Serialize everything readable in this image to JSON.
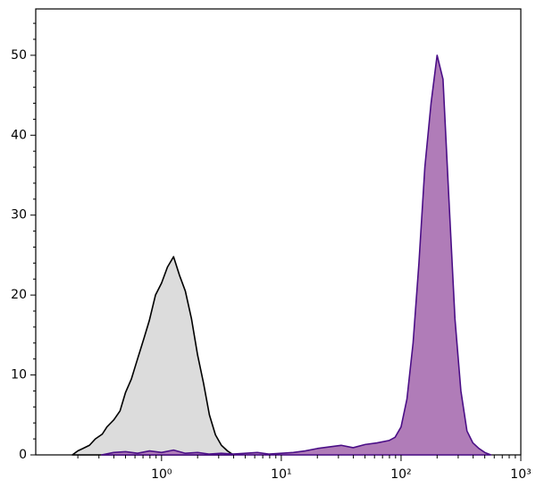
{
  "chart_data": {
    "type": "histogram-line",
    "xscale": "log",
    "xlim": [
      0.089,
      1000
    ],
    "ylim": [
      0,
      55.8
    ],
    "xticks": [
      {
        "value": 1,
        "label": "10⁰"
      },
      {
        "value": 10,
        "label": "10¹"
      },
      {
        "value": 100,
        "label": "10²"
      },
      {
        "value": 1000,
        "label": "10³"
      }
    ],
    "xminor_ticks": [
      0.2,
      0.3,
      0.4,
      0.5,
      0.6,
      0.7,
      0.8,
      0.9,
      2,
      3,
      4,
      5,
      6,
      7,
      8,
      9,
      20,
      30,
      40,
      50,
      60,
      70,
      80,
      90,
      200,
      300,
      400,
      500,
      600,
      700,
      800,
      900
    ],
    "yticks": [
      0,
      10,
      20,
      30,
      40,
      50
    ],
    "yminor_ticks": [
      2,
      4,
      6,
      8,
      12,
      14,
      16,
      18,
      22,
      24,
      26,
      28,
      32,
      34,
      36,
      38,
      42,
      44,
      46,
      48,
      52,
      54
    ],
    "series": [
      {
        "color": "#000000",
        "fill": "#dcdcdc",
        "x": [
          0.18,
          0.2,
          0.22,
          0.25,
          0.28,
          0.32,
          0.35,
          0.4,
          0.45,
          0.5,
          0.56,
          0.63,
          0.71,
          0.79,
          0.89,
          1.0,
          1.12,
          1.26,
          1.41,
          1.58,
          1.78,
          2.0,
          2.24,
          2.51,
          2.82,
          3.16,
          3.55,
          3.98
        ],
        "values": [
          0,
          0.5,
          0.8,
          1.2,
          2,
          2.6,
          3.5,
          4.4,
          5.5,
          7.8,
          9.5,
          12,
          14.5,
          16.8,
          20,
          21.5,
          23.5,
          24.8,
          22.5,
          20.5,
          17,
          12.5,
          9,
          5,
          2.5,
          1.2,
          0.5,
          0
        ]
      },
      {
        "color": "#4b0f87",
        "fill": "#b07cb8",
        "x": [
          0.316,
          0.398,
          0.501,
          0.631,
          0.794,
          1.0,
          1.26,
          1.58,
          2.0,
          2.51,
          3.16,
          3.98,
          5.01,
          6.31,
          7.94,
          10,
          12.6,
          15.8,
          20,
          25.1,
          31.6,
          39.8,
          50.1,
          63.1,
          79.4,
          89.1,
          100,
          112,
          126,
          141,
          158,
          178,
          200,
          224,
          251,
          282,
          316,
          355,
          398,
          447,
          501,
          562
        ],
        "values": [
          0,
          0.3,
          0.4,
          0.2,
          0.5,
          0.3,
          0.6,
          0.2,
          0.3,
          0.1,
          0.2,
          0.1,
          0.2,
          0.3,
          0.1,
          0.2,
          0.3,
          0.5,
          0.8,
          1.0,
          1.2,
          0.9,
          1.3,
          1.5,
          1.8,
          2.2,
          3.5,
          7,
          14,
          24,
          36,
          44,
          50,
          47,
          32,
          17,
          8,
          3,
          1.5,
          0.8,
          0.3,
          0
        ]
      }
    ]
  }
}
